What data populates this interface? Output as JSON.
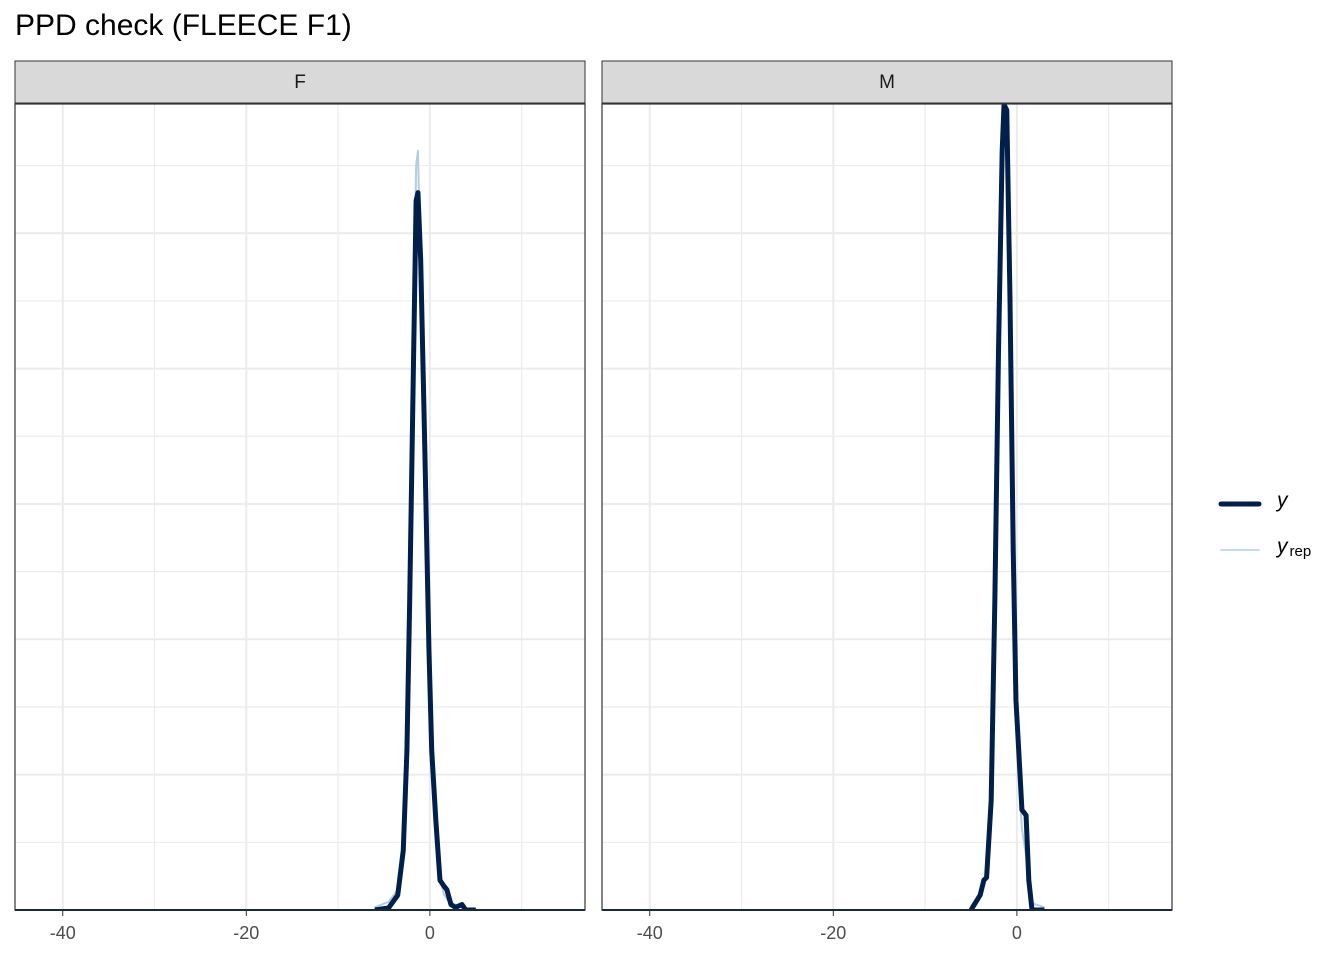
{
  "chart_data": {
    "type": "line",
    "title": "PPD check (FLEECE F1)",
    "xlim": [
      -45.2,
      16.9
    ],
    "xticks": [
      -40,
      -20,
      0
    ],
    "xminor": [
      -30,
      -10,
      10
    ],
    "ylim": [
      0,
      0.5955
    ],
    "ygrid": [
      0.05,
      0.1,
      0.15,
      0.2,
      0.25,
      0.3,
      0.35,
      0.4,
      0.45,
      0.5,
      0.55
    ],
    "legend": [
      {
        "label": "y",
        "color": "#011f4b"
      },
      {
        "label": "y",
        "sub": "rep",
        "color": "#b3cde0"
      }
    ],
    "facets": [
      {
        "label": "F",
        "x": [
          -6,
          -4.5,
          -3.5,
          -2.9,
          -2.5,
          -2.2,
          -1.85,
          -1.5,
          -1.3,
          -1.0,
          -0.55,
          -0.1,
          0.2,
          0.65,
          1.1,
          1.5,
          1.85,
          2.3,
          2.8,
          3.5,
          3.9,
          5
        ],
        "y": [
          0,
          0.0015,
          0.011,
          0.044,
          0.118,
          0.229,
          0.377,
          0.524,
          0.53,
          0.48,
          0.34,
          0.192,
          0.118,
          0.066,
          0.022,
          0.018,
          0.015,
          0.004,
          0.002,
          0.004,
          0,
          0
        ],
        "yrep": [
          0.002,
          0.006,
          0.015,
          0.05,
          0.12,
          0.24,
          0.4,
          0.55,
          0.561,
          0.47,
          0.32,
          0.18,
          0.11,
          0.06,
          0.025,
          0.012,
          0.008,
          0.005,
          0.003,
          0.002,
          0.001,
          0
        ]
      },
      {
        "label": "M",
        "x": [
          -5,
          -4,
          -3.6,
          -3.3,
          -2.8,
          -2.4,
          -2,
          -1.6,
          -1.4,
          -1.1,
          -0.75,
          -0.4,
          -0.1,
          0.2,
          0.55,
          1,
          1.3,
          1.65,
          3
        ],
        "y": [
          0,
          0.011,
          0.022,
          0.024,
          0.081,
          0.229,
          0.414,
          0.561,
          0.595,
          0.591,
          0.451,
          0.266,
          0.155,
          0.118,
          0.074,
          0.07,
          0.022,
          0,
          0
        ],
        "yrep": [
          0.003,
          0.012,
          0.02,
          0.03,
          0.09,
          0.24,
          0.42,
          0.55,
          0.58,
          0.57,
          0.44,
          0.27,
          0.16,
          0.1,
          0.06,
          0.04,
          0.015,
          0.005,
          0.002
        ]
      }
    ]
  }
}
